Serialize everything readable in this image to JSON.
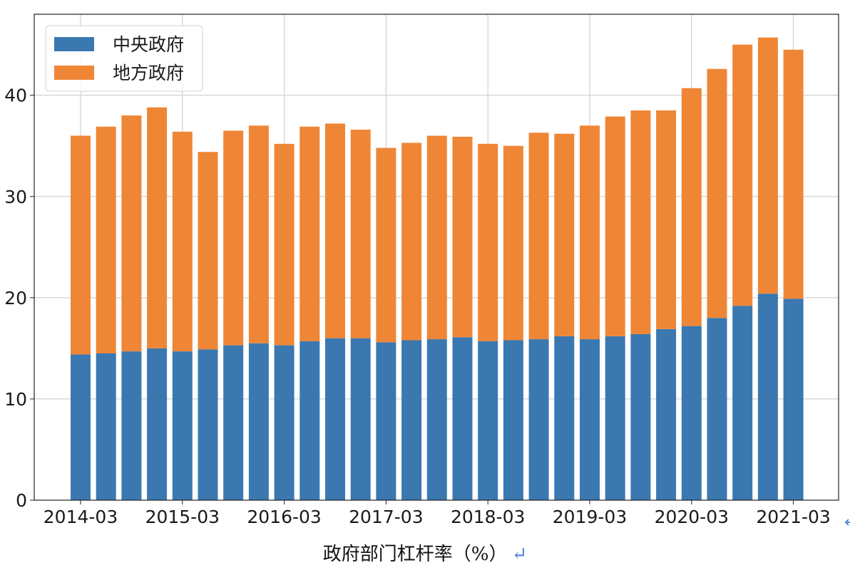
{
  "chart_data": {
    "type": "bar",
    "stacked": true,
    "caption": "政府部门杠杆率（%）",
    "caption_mark": "↵",
    "x": [
      "2014-03",
      "2014-06",
      "2014-09",
      "2014-12",
      "2015-03",
      "2015-06",
      "2015-09",
      "2015-12",
      "2016-03",
      "2016-06",
      "2016-09",
      "2016-12",
      "2017-03",
      "2017-06",
      "2017-09",
      "2017-12",
      "2018-03",
      "2018-06",
      "2018-09",
      "2018-12",
      "2019-03",
      "2019-06",
      "2019-09",
      "2019-12",
      "2020-03",
      "2020-06",
      "2020-09",
      "2020-12",
      "2021-03"
    ],
    "x_ticks": [
      "2014-03",
      "2015-03",
      "2016-03",
      "2017-03",
      "2018-03",
      "2019-03",
      "2020-03",
      "2021-03"
    ],
    "y_ticks": [
      0,
      10,
      20,
      30,
      40
    ],
    "ylim": [
      0,
      48
    ],
    "grid": true,
    "legend": "top-left",
    "series": [
      {
        "name": "中央政府",
        "color": "#3b78b0",
        "values": [
          14.4,
          14.5,
          14.7,
          15.0,
          14.7,
          14.9,
          15.3,
          15.5,
          15.3,
          15.7,
          16.0,
          16.0,
          15.6,
          15.8,
          15.9,
          16.1,
          15.7,
          15.8,
          15.9,
          16.2,
          15.9,
          16.2,
          16.4,
          16.9,
          17.2,
          18.0,
          19.2,
          20.4,
          19.9
        ]
      },
      {
        "name": "地方政府",
        "color": "#ef8636",
        "values": [
          21.6,
          22.4,
          23.3,
          23.8,
          21.7,
          19.5,
          21.2,
          21.5,
          19.9,
          21.2,
          21.2,
          20.6,
          19.2,
          19.5,
          20.1,
          19.8,
          19.5,
          19.2,
          20.4,
          20.0,
          21.1,
          21.7,
          22.1,
          21.6,
          23.5,
          24.6,
          25.8,
          25.3,
          24.6
        ]
      }
    ]
  }
}
